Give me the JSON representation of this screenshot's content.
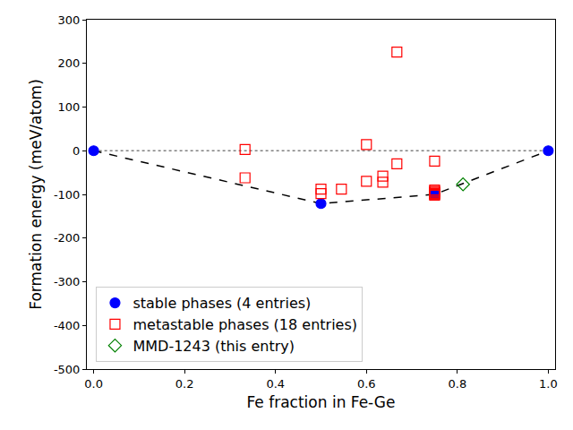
{
  "chart_data": {
    "type": "scatter",
    "x_label": "Fe fraction in Fe-Ge",
    "y_label": "Formation energy (meV/atom)",
    "xlim": [
      -0.015,
      1.015
    ],
    "ylim": [
      -500,
      300
    ],
    "xticks": [
      {
        "value": 0,
        "label": "0.0"
      },
      {
        "value": 0.2,
        "label": "0.2"
      },
      {
        "value": 0.4,
        "label": "0.4"
      },
      {
        "value": 0.6,
        "label": "0.6"
      },
      {
        "value": 0.8,
        "label": "0.8"
      },
      {
        "value": 1,
        "label": "1.0"
      }
    ],
    "yticks": [
      -500,
      -400,
      -300,
      -200,
      -100,
      0,
      100,
      200,
      300
    ],
    "grid": false,
    "legend": "lower left",
    "series": [
      {
        "type": "line",
        "line_style": "dotted",
        "color": "gray",
        "x": [
          0,
          1
        ],
        "values": [
          0,
          0
        ]
      },
      {
        "type": "line",
        "line_style": "dashed",
        "color": "black",
        "x": [
          0,
          0.5,
          0.75,
          1
        ],
        "values": [
          0,
          -121,
          -100,
          0
        ]
      },
      {
        "name": "stable phases (4 entries)",
        "type": "scatter",
        "marker": "circle",
        "color": "blue",
        "x": [
          0,
          0.5,
          0.75,
          1
        ],
        "values": [
          0,
          -121,
          -100,
          0
        ]
      },
      {
        "name": "metastable phases (18 entries)",
        "type": "scatter",
        "marker": "square-open",
        "color": "red",
        "x": [
          0.333,
          0.333,
          0.5,
          0.5,
          0.545,
          0.6,
          0.6,
          0.636,
          0.636,
          0.667,
          0.667,
          0.75,
          0.75,
          0.75,
          0.75,
          0.75,
          0.75,
          0.75
        ],
        "values": [
          3,
          -62,
          -88,
          -98,
          -88,
          14,
          -70,
          -58,
          -72,
          226,
          -30,
          -24,
          -90,
          -93,
          -95,
          -98,
          -100,
          -102
        ]
      },
      {
        "name": "MMD-1243 (this entry)",
        "type": "scatter",
        "marker": "diamond-open",
        "color": "green",
        "x": [
          0.8125
        ],
        "values": [
          -77
        ]
      }
    ]
  }
}
